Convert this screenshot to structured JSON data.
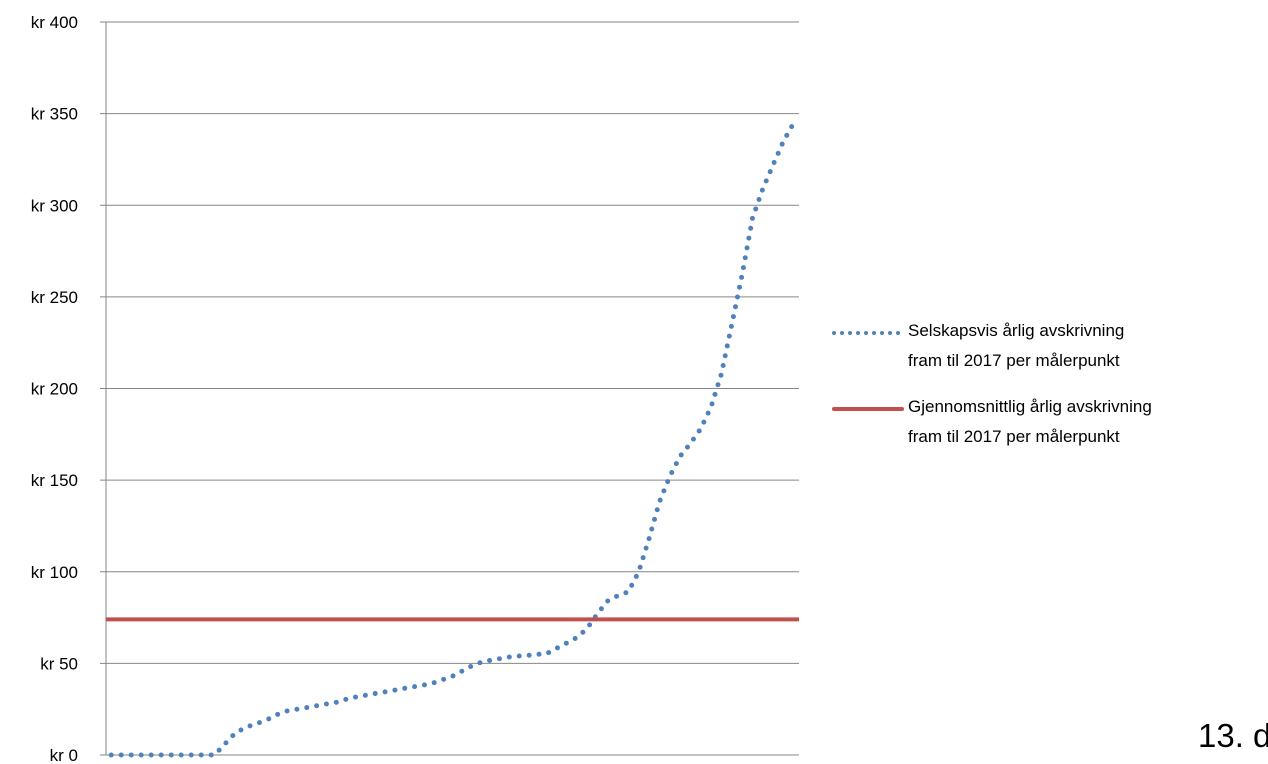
{
  "chart_data": {
    "type": "line",
    "title": "",
    "xlabel": "",
    "ylabel": "",
    "ylim": [
      0,
      400
    ],
    "y_ticks": [
      0,
      50,
      100,
      150,
      200,
      250,
      300,
      350,
      400
    ],
    "y_tick_labels": [
      "kr 0",
      "kr 50",
      "kr 100",
      "kr 150",
      "kr 200",
      "kr 250",
      "kr 300",
      "kr 350",
      "kr 400"
    ],
    "grid": true,
    "legend_position": "right",
    "series": [
      {
        "name": "Selskapsvis årlig avskrivning fram til 2017 per målerpunkt",
        "legend_lines": [
          "Selskapsvis årlig avskrivning",
          "fram til 2017 per målerpunkt"
        ],
        "style": "dotted",
        "color": "#4F81BD",
        "values": [
          0,
          0,
          0,
          0,
          0,
          0,
          0,
          0,
          0,
          0,
          0,
          6,
          12,
          15,
          17,
          19,
          22,
          24,
          25,
          26,
          27,
          28,
          29,
          31,
          32,
          33,
          34,
          35,
          36,
          37,
          38,
          39,
          41,
          43,
          46,
          49,
          51,
          52,
          53,
          54,
          54,
          55,
          55,
          58,
          61,
          64,
          69,
          77,
          84,
          87,
          89,
          100,
          118,
          138,
          152,
          163,
          170,
          178,
          190,
          208,
          235,
          262,
          293,
          309,
          322,
          335,
          345
        ]
      },
      {
        "name": "Gjennomsnittlig årlig avskrivning fram til 2017 per målerpunkt",
        "legend_lines": [
          "Gjennomsnittlig årlig avskrivning",
          "fram til 2017 per målerpunkt"
        ],
        "style": "solid",
        "color": "#C0504D",
        "constant_value": 74
      }
    ]
  },
  "page_number": "13. d"
}
